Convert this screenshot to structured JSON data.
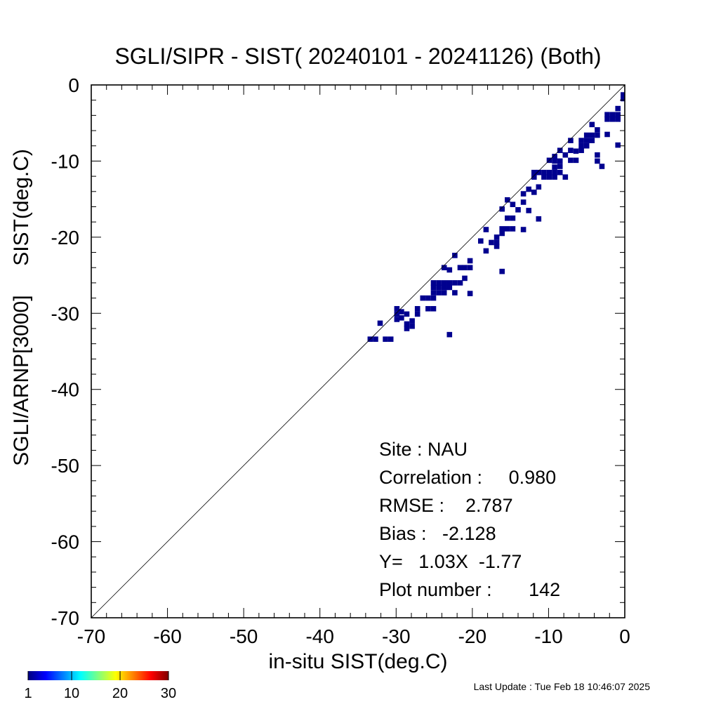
{
  "chart_data": {
    "type": "heatmap",
    "title": "SGLI/SIPR - SIST( 20240101 - 20241126) (Both)",
    "xlabel": "in-situ SIST(deg.C)",
    "ylabel": "SGLI/ARNP[3000]     SIST(deg.C)",
    "xlim": [
      -70,
      0
    ],
    "ylim": [
      -70,
      0
    ],
    "x_ticks": [
      "-70",
      "-60",
      "-50",
      "-40",
      "-30",
      "-20",
      "-10",
      "0"
    ],
    "y_ticks": [
      "-70",
      "-60",
      "-50",
      "-40",
      "-30",
      "-20",
      "-10",
      "0"
    ],
    "reference_line": "1:1 diagonal",
    "bin_size": 0.7,
    "colorbar": {
      "min": 1,
      "max": 30,
      "tick_labels": [
        "1",
        "10",
        "20",
        "30"
      ],
      "colormap": "jet"
    },
    "cell_color": "#00008f",
    "stats": {
      "site": "Site : NAU",
      "correlation": "Correlation :     0.980",
      "rmse": "RMSE :    2.787",
      "bias": "Bias :   -2.128",
      "fit": "Y=   1.03X  -1.77",
      "plot_number": "Plot number :       142"
    },
    "points": [
      [
        -33.4,
        -33.4
      ],
      [
        -32.7,
        -33.4
      ],
      [
        -32.1,
        -31.3
      ],
      [
        -31.4,
        -33.4
      ],
      [
        -30.7,
        -33.4
      ],
      [
        -29.9,
        -29.4
      ],
      [
        -29.9,
        -30.1
      ],
      [
        -29.9,
        -30.8
      ],
      [
        -29.3,
        -29.8
      ],
      [
        -29.3,
        -30.6
      ],
      [
        -28.6,
        -30.1
      ],
      [
        -28.6,
        -31.4
      ],
      [
        -28.6,
        -32.0
      ],
      [
        -27.9,
        -31.0
      ],
      [
        -27.9,
        -31.7
      ],
      [
        -27.2,
        -29.4
      ],
      [
        -27.2,
        -30.1
      ],
      [
        -26.5,
        -28.0
      ],
      [
        -25.8,
        -29.4
      ],
      [
        -25.8,
        -28.0
      ],
      [
        -25.1,
        -29.4
      ],
      [
        -25.1,
        -26.0
      ],
      [
        -25.1,
        -26.6
      ],
      [
        -25.1,
        -27.3
      ],
      [
        -25.1,
        -28.0
      ],
      [
        -24.4,
        -26.0
      ],
      [
        -24.4,
        -26.6
      ],
      [
        -24.4,
        -27.3
      ],
      [
        -23.7,
        -26.0
      ],
      [
        -23.7,
        -26.6
      ],
      [
        -23.7,
        -24.0
      ],
      [
        -23.7,
        -27.3
      ],
      [
        -23.0,
        -26.0
      ],
      [
        -23.0,
        -26.6
      ],
      [
        -23.0,
        -24.3
      ],
      [
        -23.0,
        -32.8
      ],
      [
        -22.3,
        -26.0
      ],
      [
        -22.3,
        -27.3
      ],
      [
        -22.3,
        -22.4
      ],
      [
        -21.6,
        -24.0
      ],
      [
        -21.6,
        -26.0
      ],
      [
        -21.0,
        -24.0
      ],
      [
        -21.0,
        -25.4
      ],
      [
        -20.3,
        -23.1
      ],
      [
        -20.3,
        -24.0
      ],
      [
        -20.3,
        -27.4
      ],
      [
        -18.9,
        -20.5
      ],
      [
        -18.2,
        -19.0
      ],
      [
        -18.2,
        -21.8
      ],
      [
        -17.5,
        -20.7
      ],
      [
        -16.8,
        -20.0
      ],
      [
        -16.8,
        -20.7
      ],
      [
        -16.8,
        -21.2
      ],
      [
        -16.1,
        -16.3
      ],
      [
        -16.1,
        -18.9
      ],
      [
        -16.1,
        -19.5
      ],
      [
        -16.1,
        -24.5
      ],
      [
        -15.4,
        -15.1
      ],
      [
        -15.4,
        -17.5
      ],
      [
        -15.4,
        -18.9
      ],
      [
        -14.7,
        -15.7
      ],
      [
        -14.7,
        -17.5
      ],
      [
        -14.7,
        -18.9
      ],
      [
        -14.0,
        -16.4
      ],
      [
        -13.3,
        -14.3
      ],
      [
        -13.3,
        -15.4
      ],
      [
        -13.3,
        -19.0
      ],
      [
        -12.6,
        -13.7
      ],
      [
        -12.6,
        -16.5
      ],
      [
        -11.9,
        -11.5
      ],
      [
        -11.9,
        -12.1
      ],
      [
        -11.9,
        -14.1
      ],
      [
        -11.3,
        -11.5
      ],
      [
        -11.3,
        -13.4
      ],
      [
        -11.3,
        -17.6
      ],
      [
        -10.6,
        -11.5
      ],
      [
        -10.6,
        -12.1
      ],
      [
        -9.9,
        -9.9
      ],
      [
        -9.9,
        -11.5
      ],
      [
        -9.9,
        -12.1
      ],
      [
        -9.2,
        -9.4
      ],
      [
        -9.2,
        -10.0
      ],
      [
        -9.2,
        -10.8
      ],
      [
        -9.2,
        -11.5
      ],
      [
        -9.2,
        -12.1
      ],
      [
        -8.5,
        -8.6
      ],
      [
        -8.5,
        -10.0
      ],
      [
        -8.5,
        -10.7
      ],
      [
        -8.5,
        -11.5
      ],
      [
        -7.8,
        -9.2
      ],
      [
        -7.8,
        -12.1
      ],
      [
        -7.1,
        -7.3
      ],
      [
        -7.1,
        -8.6
      ],
      [
        -7.1,
        -9.9
      ],
      [
        -6.4,
        -8.7
      ],
      [
        -6.4,
        -9.9
      ],
      [
        -5.7,
        -7.3
      ],
      [
        -5.7,
        -8.0
      ],
      [
        -5.7,
        -8.6
      ],
      [
        -5.0,
        -6.6
      ],
      [
        -5.0,
        -7.3
      ],
      [
        -5.0,
        -8.0
      ],
      [
        -4.3,
        -5.2
      ],
      [
        -4.3,
        -6.6
      ],
      [
        -4.3,
        -7.3
      ],
      [
        -3.6,
        -5.9
      ],
      [
        -3.6,
        -6.6
      ],
      [
        -3.6,
        -9.2
      ],
      [
        -3.6,
        -10.0
      ],
      [
        -3.0,
        -10.7
      ],
      [
        -2.3,
        -6.5
      ],
      [
        -2.3,
        -3.9
      ],
      [
        -2.3,
        -4.5
      ],
      [
        -1.6,
        -3.9
      ],
      [
        -1.6,
        -4.5
      ],
      [
        -0.9,
        -3.9
      ],
      [
        -0.9,
        -4.5
      ],
      [
        -0.9,
        -3.1
      ],
      [
        -0.9,
        -7.9
      ],
      [
        -0.2,
        -1.3
      ],
      [
        -0.2,
        -1.8
      ]
    ]
  },
  "footer": {
    "last_update": "Last Update : Tue Feb 18 10:46:07 2025"
  }
}
